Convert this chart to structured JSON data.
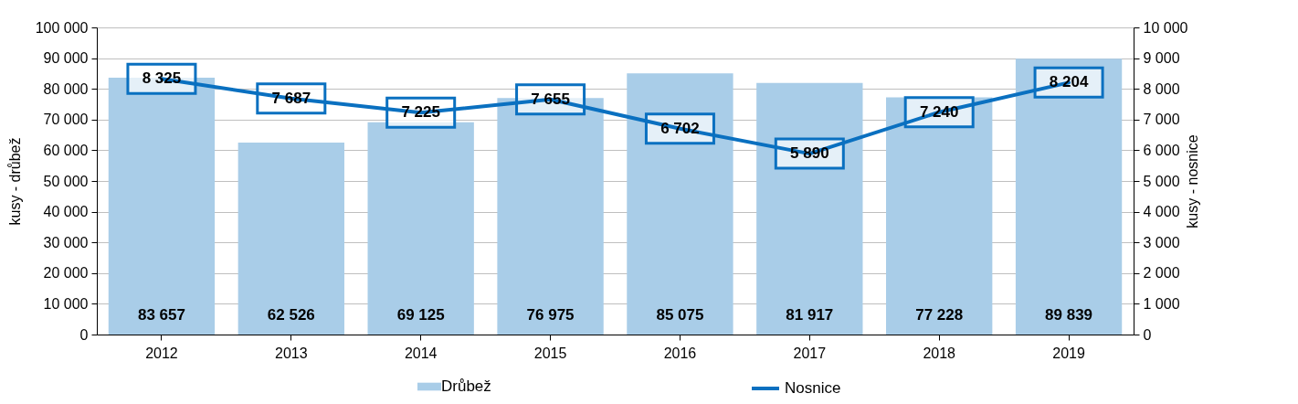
{
  "chart_data": {
    "type": "bar",
    "ylabel": "kusy - drůbež",
    "y2label": "kusy - nosnice",
    "categories": [
      "2012",
      "2013",
      "2014",
      "2015",
      "2016",
      "2017",
      "2018",
      "2019"
    ],
    "series": [
      {
        "name": "Drůbež",
        "color": "#a9cde8",
        "values": [
          83657,
          62526,
          69125,
          76975,
          85075,
          81917,
          77228,
          89839
        ]
      },
      {
        "name": "Nosnice",
        "type": "line",
        "axis": "y2",
        "color": "#0a70c0",
        "values": [
          8325,
          7687,
          7225,
          7655,
          6702,
          5890,
          7240,
          8204
        ]
      }
    ],
    "ylim": [
      0,
      100000
    ],
    "yticks": [
      0,
      10000,
      20000,
      30000,
      40000,
      50000,
      60000,
      70000,
      80000,
      90000,
      100000
    ],
    "y2lim": [
      0,
      10000
    ],
    "y2ticks": [
      0,
      1000,
      2000,
      3000,
      4000,
      5000,
      6000,
      7000,
      8000,
      9000,
      10000
    ],
    "grid": "y",
    "legend": "bottom",
    "data_labels": true,
    "line_style": "solid"
  }
}
